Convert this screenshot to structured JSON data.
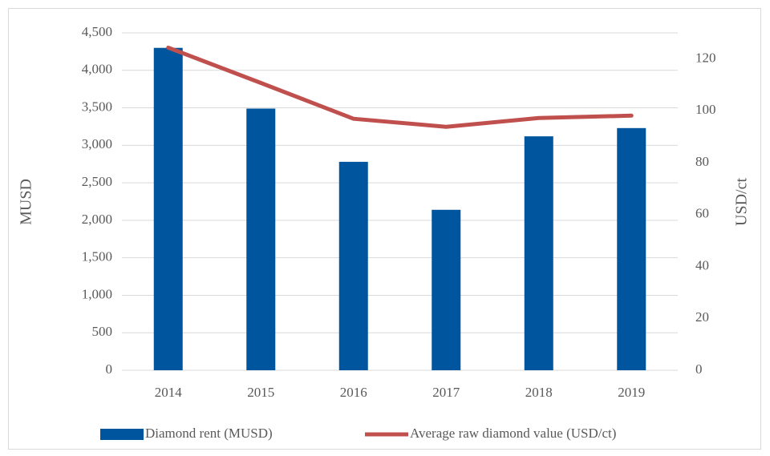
{
  "chart_data": {
    "type": "bar-line",
    "categories": [
      "2014",
      "2015",
      "2016",
      "2017",
      "2018",
      "2019"
    ],
    "series": [
      {
        "name": "Diamond rent (MUSD)",
        "type": "bar",
        "color": "#00569e",
        "values": [
          4300,
          3490,
          2780,
          2140,
          3120,
          3230
        ]
      },
      {
        "name": "Average raw diamond value (USD/ct)",
        "type": "line",
        "axis": "y2",
        "color": "#c0504d",
        "values": [
          124.3,
          110.7,
          96.9,
          93.8,
          97.2,
          98.1
        ]
      }
    ],
    "ylabel": "MUSD",
    "y2label": "USD/ct",
    "ylim": [
      0,
      4500
    ],
    "yticks": [
      0,
      500,
      {
        "value": 1000,
        "label": "1,000"
      },
      {
        "value": 1500,
        "label": "1,500"
      },
      {
        "value": 2000,
        "label": "2,000"
      },
      {
        "value": 2500,
        "label": "2,500"
      },
      {
        "value": 3000,
        "label": "3,000"
      },
      {
        "value": 3500,
        "label": "3,500"
      },
      {
        "value": 4000,
        "label": "4,000"
      },
      {
        "value": 4500,
        "label": "4,500"
      }
    ],
    "y2lim": [
      0,
      130
    ],
    "y2ticks": [
      0,
      20,
      40,
      60,
      80,
      100,
      120
    ],
    "grid": true,
    "legend": "bottom"
  }
}
